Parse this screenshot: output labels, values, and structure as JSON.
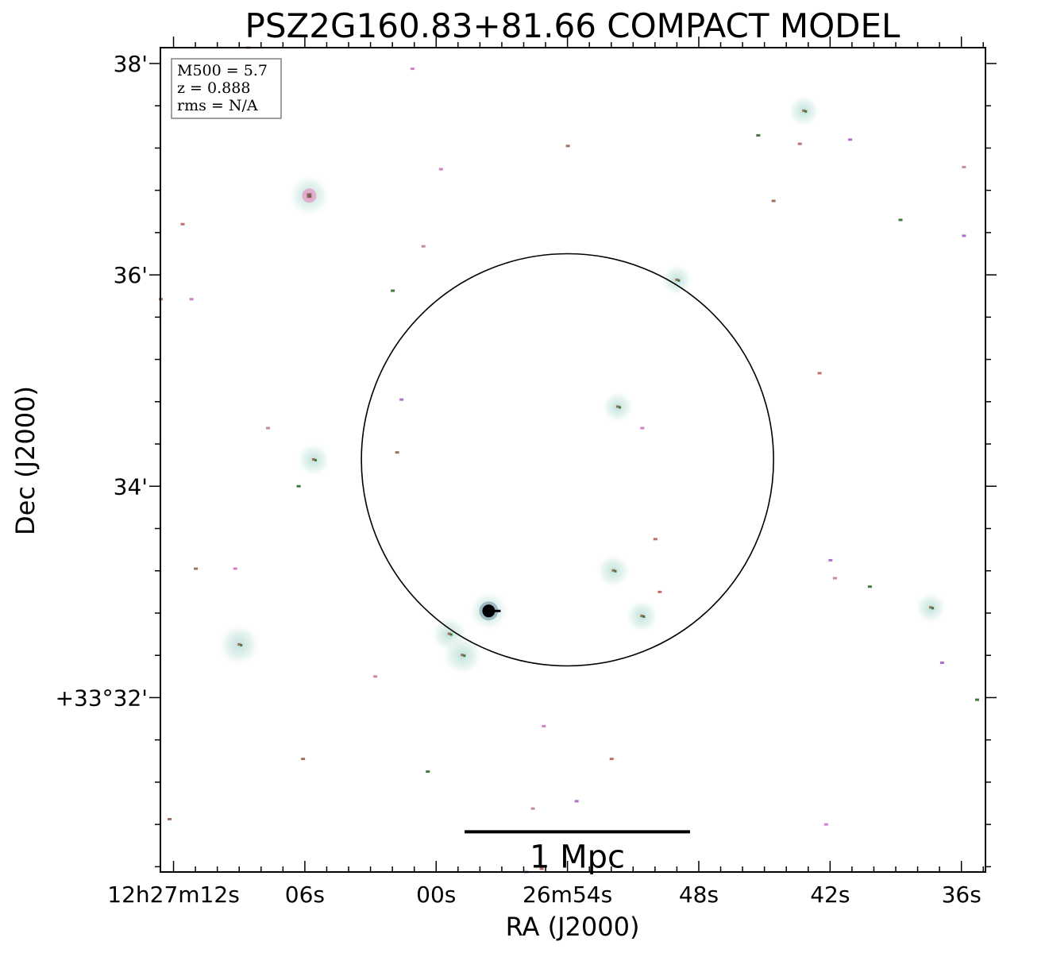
{
  "chart_data": {
    "type": "scatter",
    "title": "PSZ2G160.83+81.66 COMPACT MODEL",
    "xlabel": "RA (J2000)",
    "ylabel": "Dec (J2000)",
    "x_unit": "RA seconds of time (12h26m..12h27m)",
    "y_unit": "Dec arcminutes above +33°",
    "xlim": [
      72.6,
      34.9
    ],
    "ylim": [
      30.35,
      38.15
    ],
    "x_ticks": [
      {
        "value": 72,
        "label": "12h27m12s"
      },
      {
        "value": 66,
        "label": "06s"
      },
      {
        "value": 60,
        "label": "00s"
      },
      {
        "value": 54,
        "label": "26m54s"
      },
      {
        "value": 48,
        "label": "48s"
      },
      {
        "value": 42,
        "label": "42s"
      },
      {
        "value": 36,
        "label": "36s"
      }
    ],
    "y_ticks": [
      {
        "value": 38,
        "label": "38'"
      },
      {
        "value": 36,
        "label": "36'"
      },
      {
        "value": 34,
        "label": "34'"
      },
      {
        "value": 32,
        "label": "+33°32'"
      }
    ],
    "legend": {
      "placement": "top-left",
      "lines": [
        "M500 = 5.7",
        "z = 0.888",
        "rms = N/A"
      ]
    },
    "circle": {
      "center_x": 54.0,
      "center_y": 34.25,
      "radius_arcmin": 1.95
    },
    "scale_bar": {
      "label": "1 Mpc",
      "x_start": 58.7,
      "x_end": 48.4,
      "y": 30.73
    },
    "sources": [
      {
        "x": 65.8,
        "y": 36.75,
        "strength": 0.7,
        "halo": 1.0
      },
      {
        "x": 57.6,
        "y": 32.82,
        "strength": 1.0,
        "halo": 0.9
      },
      {
        "x": 59.4,
        "y": 32.6,
        "strength": 0.3,
        "halo": 0.7
      },
      {
        "x": 58.8,
        "y": 32.4,
        "strength": 0.15,
        "halo": 0.9
      },
      {
        "x": 69.0,
        "y": 32.5,
        "strength": 0.2,
        "halo": 1.0
      },
      {
        "x": 65.6,
        "y": 34.25,
        "strength": 0.25,
        "halo": 0.6
      },
      {
        "x": 51.7,
        "y": 34.75,
        "strength": 0.2,
        "halo": 0.5
      },
      {
        "x": 51.9,
        "y": 33.2,
        "strength": 0.2,
        "halo": 0.6
      },
      {
        "x": 50.6,
        "y": 32.77,
        "strength": 0.25,
        "halo": 0.6
      },
      {
        "x": 49.0,
        "y": 35.95,
        "strength": 0.3,
        "halo": 0.5
      },
      {
        "x": 43.2,
        "y": 37.55,
        "strength": 0.15,
        "halo": 0.5
      },
      {
        "x": 37.4,
        "y": 32.85,
        "strength": 0.2,
        "halo": 0.5
      }
    ],
    "noise_pixels": [
      [
        68.6,
        38.15
      ],
      [
        61.1,
        37.95
      ],
      [
        54.0,
        37.22
      ],
      [
        45.3,
        37.32
      ],
      [
        43.4,
        37.24
      ],
      [
        41.1,
        37.28
      ],
      [
        35.9,
        37.02
      ],
      [
        59.8,
        37.0
      ],
      [
        44.6,
        36.7
      ],
      [
        38.8,
        36.52
      ],
      [
        71.6,
        36.48
      ],
      [
        35.9,
        36.37
      ],
      [
        60.6,
        36.27
      ],
      [
        71.2,
        35.77
      ],
      [
        72.6,
        35.77
      ],
      [
        62.0,
        35.85
      ],
      [
        42.5,
        35.07
      ],
      [
        61.6,
        34.82
      ],
      [
        67.7,
        34.55
      ],
      [
        50.6,
        34.55
      ],
      [
        61.8,
        34.32
      ],
      [
        66.3,
        34.0
      ],
      [
        50.0,
        33.5
      ],
      [
        42.0,
        33.3
      ],
      [
        41.8,
        33.13
      ],
      [
        69.2,
        33.22
      ],
      [
        71.0,
        33.22
      ],
      [
        40.2,
        33.05
      ],
      [
        49.8,
        33.0
      ],
      [
        36.9,
        32.33
      ],
      [
        62.8,
        32.2
      ],
      [
        55.1,
        31.73
      ],
      [
        66.1,
        31.42
      ],
      [
        60.4,
        31.3
      ],
      [
        52.0,
        31.42
      ],
      [
        53.6,
        31.02
      ],
      [
        55.6,
        30.95
      ],
      [
        42.2,
        30.8
      ],
      [
        72.2,
        30.85
      ],
      [
        35.3,
        31.98
      ],
      [
        55.2,
        30.38
      ],
      [
        55.9,
        30.35
      ]
    ]
  }
}
